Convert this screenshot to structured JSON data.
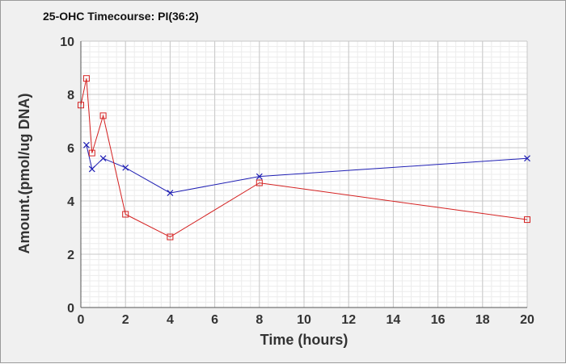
{
  "chart_data": {
    "type": "line",
    "title": "25-OHC Timecourse: PI(36:2)",
    "xlabel": "Time (hours)",
    "ylabel": "Amount.(pmol/ug DNA)",
    "xlim": [
      0,
      20
    ],
    "ylim": [
      0,
      10
    ],
    "x_ticks": [
      0,
      2,
      4,
      6,
      8,
      10,
      12,
      14,
      16,
      18,
      20
    ],
    "y_ticks": [
      0,
      2,
      4,
      6,
      8,
      10
    ],
    "grid": true,
    "legend": "none",
    "series": [
      {
        "marker": "x",
        "color": "#1f1fb4",
        "points": [
          {
            "x": 0.25,
            "y": 6.1
          },
          {
            "x": 0.5,
            "y": 5.2
          },
          {
            "x": 1,
            "y": 5.6
          },
          {
            "x": 2,
            "y": 5.25
          },
          {
            "x": 4,
            "y": 4.3
          },
          {
            "x": 8,
            "y": 4.92
          },
          {
            "x": 20,
            "y": 5.6
          }
        ]
      },
      {
        "marker": "square",
        "color": "#d42020",
        "points": [
          {
            "x": 0,
            "y": 7.6
          },
          {
            "x": 0.25,
            "y": 8.6
          },
          {
            "x": 0.5,
            "y": 5.8
          },
          {
            "x": 1,
            "y": 7.2
          },
          {
            "x": 2,
            "y": 3.5
          },
          {
            "x": 4,
            "y": 2.65
          },
          {
            "x": 8,
            "y": 4.68
          },
          {
            "x": 20,
            "y": 3.3
          }
        ]
      }
    ]
  }
}
